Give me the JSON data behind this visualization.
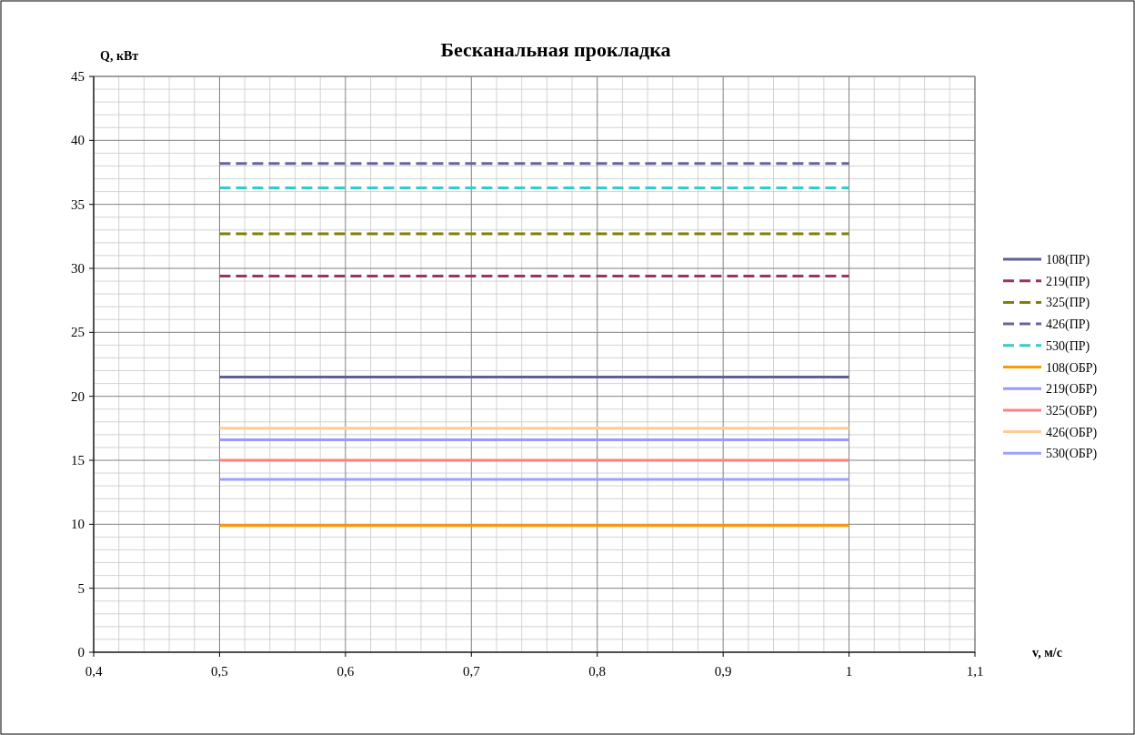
{
  "chart_data": {
    "type": "line",
    "title": "Бесканальная прокладка",
    "xlabel": "v, м/с",
    "ylabel": "Q, кВт",
    "x": [
      0.5,
      1
    ],
    "xlim": [
      0.4,
      1.1
    ],
    "xticks": [
      {
        "value": 0.4,
        "label": "0,4"
      },
      {
        "value": 0.5,
        "label": "0,5"
      },
      {
        "value": 0.6,
        "label": "0,6"
      },
      {
        "value": 0.7,
        "label": "0,7"
      },
      {
        "value": 0.8,
        "label": "0,8"
      },
      {
        "value": 0.9,
        "label": "0,9"
      },
      1,
      {
        "value": 1.1,
        "label": "1,1"
      }
    ],
    "ylim": [
      0,
      45
    ],
    "yticks": [
      0,
      5,
      10,
      15,
      20,
      25,
      30,
      35,
      40,
      45
    ],
    "grid": true,
    "legend": "right",
    "marker": "none",
    "series": [
      {
        "name": "108(ПР)",
        "color": "#5f5f96",
        "line_style": "solid",
        "values": [
          21.5,
          21.5
        ]
      },
      {
        "name": "219(ПР)",
        "color": "#993366",
        "line_style": "dashed",
        "values": [
          29.4,
          29.4
        ]
      },
      {
        "name": "325(ПР)",
        "color": "#808000",
        "line_style": "dashed",
        "values": [
          32.7,
          32.7
        ]
      },
      {
        "name": "426(ПР)",
        "color": "#666699",
        "line_style": "dashed",
        "values": [
          38.2,
          38.2
        ]
      },
      {
        "name": "530(ПР)",
        "color": "#33cccc",
        "line_style": "dashed",
        "values": [
          36.3,
          36.3
        ]
      },
      {
        "name": "108(ОБР)",
        "color": "#ff9900",
        "line_style": "solid",
        "values": [
          9.9,
          9.9
        ]
      },
      {
        "name": "219(ОБР)",
        "color": "#9999ff",
        "line_style": "solid",
        "values": [
          16.6,
          16.6
        ]
      },
      {
        "name": "325(ОБР)",
        "color": "#ff8080",
        "line_style": "solid",
        "values": [
          15,
          15
        ]
      },
      {
        "name": "426(ОБР)",
        "color": "#ffcc99",
        "line_style": "solid",
        "values": [
          17.5,
          17.5
        ]
      },
      {
        "name": "530(ОБР)",
        "color": "#a0a0ff",
        "line_style": "solid",
        "values": [
          13.5,
          13.5
        ]
      }
    ]
  }
}
